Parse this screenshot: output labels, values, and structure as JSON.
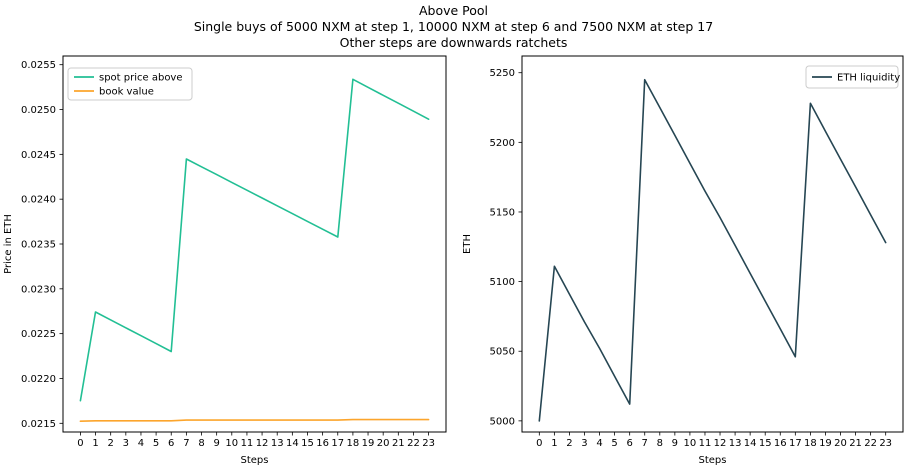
{
  "figure": {
    "background": "#ffffff",
    "title_lines": [
      "Above Pool",
      "Single buys of 5000 NXM at step 1, 10000 NXM at step 6 and 7500 NXM at step 17",
      "Other steps are downwards ratchets"
    ]
  },
  "chart_data": [
    {
      "id": "above-pool-price",
      "type": "line",
      "title": "",
      "xlabel": "Steps",
      "ylabel": "Price in ETH",
      "x": [
        0,
        1,
        2,
        3,
        4,
        5,
        6,
        7,
        8,
        9,
        10,
        11,
        12,
        13,
        14,
        15,
        16,
        17,
        18,
        19,
        20,
        21,
        22,
        23
      ],
      "xtick_labels": [
        "0",
        "1",
        "2",
        "3",
        "4",
        "5",
        "6",
        "7",
        "8",
        "9",
        "10",
        "11",
        "12",
        "13",
        "14",
        "15",
        "16",
        "17",
        "18",
        "19",
        "20",
        "21",
        "22",
        "23"
      ],
      "yticks": [
        0.0215,
        0.022,
        0.0225,
        0.023,
        0.0235,
        0.024,
        0.0245,
        0.025,
        0.0255
      ],
      "ytick_labels": [
        "0.0215",
        "0.0220",
        "0.0225",
        "0.0230",
        "0.0235",
        "0.0240",
        "0.0245",
        "0.0250",
        "0.0255"
      ],
      "xlim": [
        -1.15,
        24.15
      ],
      "ylim": [
        0.021403,
        0.025597
      ],
      "grid": false,
      "legend_position": "upper left",
      "series": [
        {
          "name": "spot price above",
          "color": "#22bf94",
          "values": [
            0.021752,
            0.022741,
            0.022653,
            0.022565,
            0.022477,
            0.022389,
            0.022301,
            0.024448,
            0.024361,
            0.024274,
            0.024187,
            0.0241,
            0.024013,
            0.023926,
            0.023839,
            0.023752,
            0.023665,
            0.023578,
            0.025337,
            0.025248,
            0.025159,
            0.02507,
            0.024981,
            0.024892
          ]
        },
        {
          "name": "book value",
          "color": "#fca52c",
          "values": [
            0.021524,
            0.021528,
            0.021528,
            0.021528,
            0.021528,
            0.021528,
            0.021528,
            0.021536,
            0.021536,
            0.021536,
            0.021536,
            0.021536,
            0.021536,
            0.021536,
            0.021536,
            0.021536,
            0.021536,
            0.021536,
            0.021541,
            0.021541,
            0.021541,
            0.021541,
            0.021541,
            0.021541
          ]
        }
      ]
    },
    {
      "id": "eth-liquidity",
      "type": "line",
      "title": "",
      "xlabel": "Steps",
      "ylabel": "ETH",
      "x": [
        0,
        1,
        2,
        3,
        4,
        5,
        6,
        7,
        8,
        9,
        10,
        11,
        12,
        13,
        14,
        15,
        16,
        17,
        18,
        19,
        20,
        21,
        22,
        23
      ],
      "xtick_labels": [
        "0",
        "1",
        "2",
        "3",
        "4",
        "5",
        "6",
        "7",
        "8",
        "9",
        "10",
        "11",
        "12",
        "13",
        "14",
        "15",
        "16",
        "17",
        "18",
        "19",
        "20",
        "21",
        "22",
        "23"
      ],
      "yticks": [
        5000,
        5050,
        5100,
        5150,
        5200,
        5250
      ],
      "ytick_labels": [
        "5000",
        "5050",
        "5100",
        "5150",
        "5200",
        "5250"
      ],
      "xlim": [
        -1.15,
        24.15
      ],
      "ylim": [
        4992,
        5262
      ],
      "grid": false,
      "legend_position": "upper right",
      "series": [
        {
          "name": "ETH liquidity",
          "color": "#264653",
          "values": [
            5000,
            5111,
            5091,
            5071,
            5052,
            5032,
            5012,
            5245,
            5225,
            5205,
            5185,
            5165,
            5146,
            5126,
            5106,
            5086,
            5066,
            5046,
            5228,
            5208,
            5188,
            5168,
            5148,
            5128
          ]
        }
      ]
    }
  ]
}
